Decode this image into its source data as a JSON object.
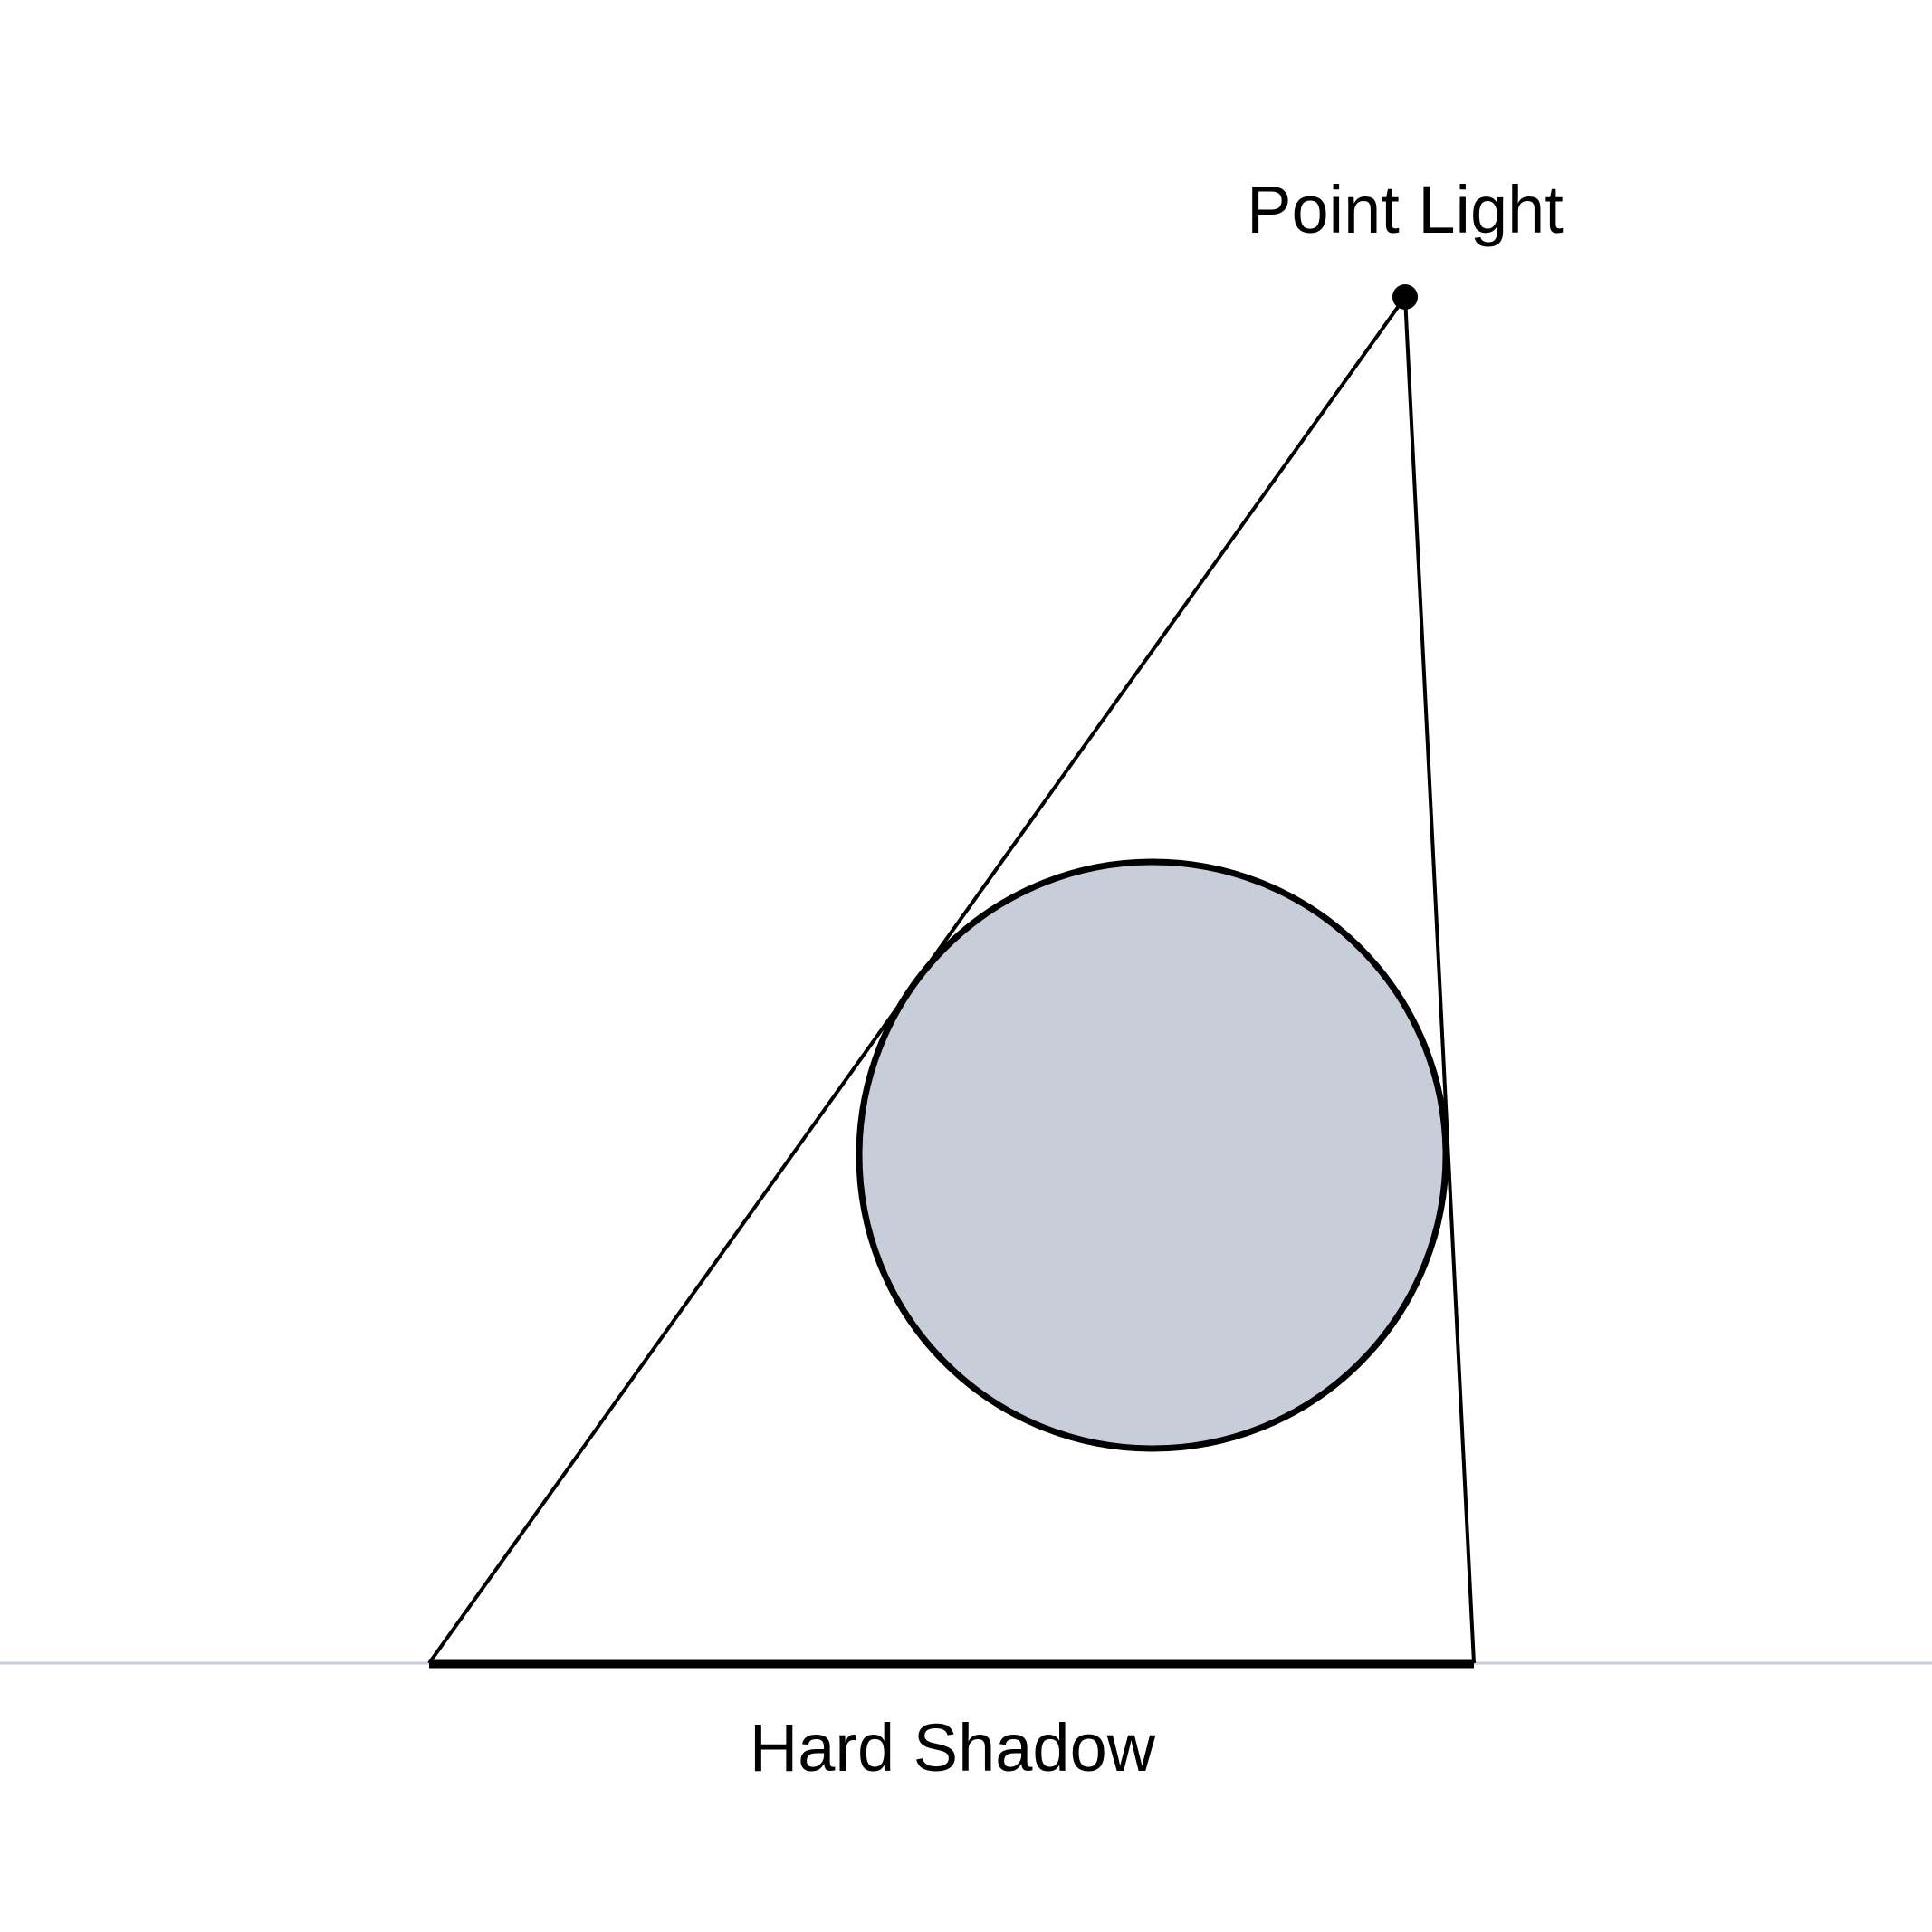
{
  "labels": {
    "light": "Point Light",
    "shadow": "Hard Shadow"
  },
  "colors": {
    "background": "#ffffff",
    "ink": "#000000",
    "sphere_fill": "#c7cdd9",
    "ground_line": "#c7cdd9"
  }
}
